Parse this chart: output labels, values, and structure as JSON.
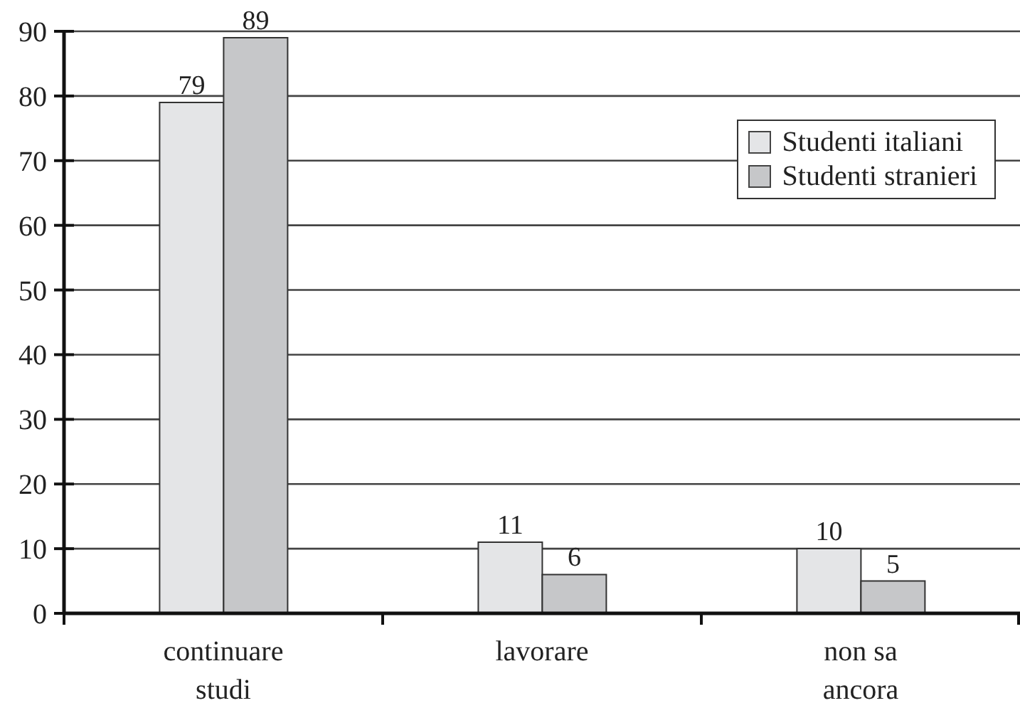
{
  "chart_data": {
    "type": "bar",
    "categories": [
      "continuare studi",
      "lavorare",
      "non sa ancora"
    ],
    "series": [
      {
        "name": "Studenti italiani",
        "color": "#e4e5e7",
        "values": [
          79,
          11,
          10
        ]
      },
      {
        "name": "Studenti stranieri",
        "color": "#c6c7c9",
        "values": [
          89,
          6,
          5
        ]
      }
    ],
    "ylim": [
      0,
      90
    ],
    "yticks": [
      0,
      10,
      20,
      30,
      40,
      50,
      60,
      70,
      80,
      90
    ],
    "grid": "y",
    "legend": "top right",
    "data_labels": true
  }
}
